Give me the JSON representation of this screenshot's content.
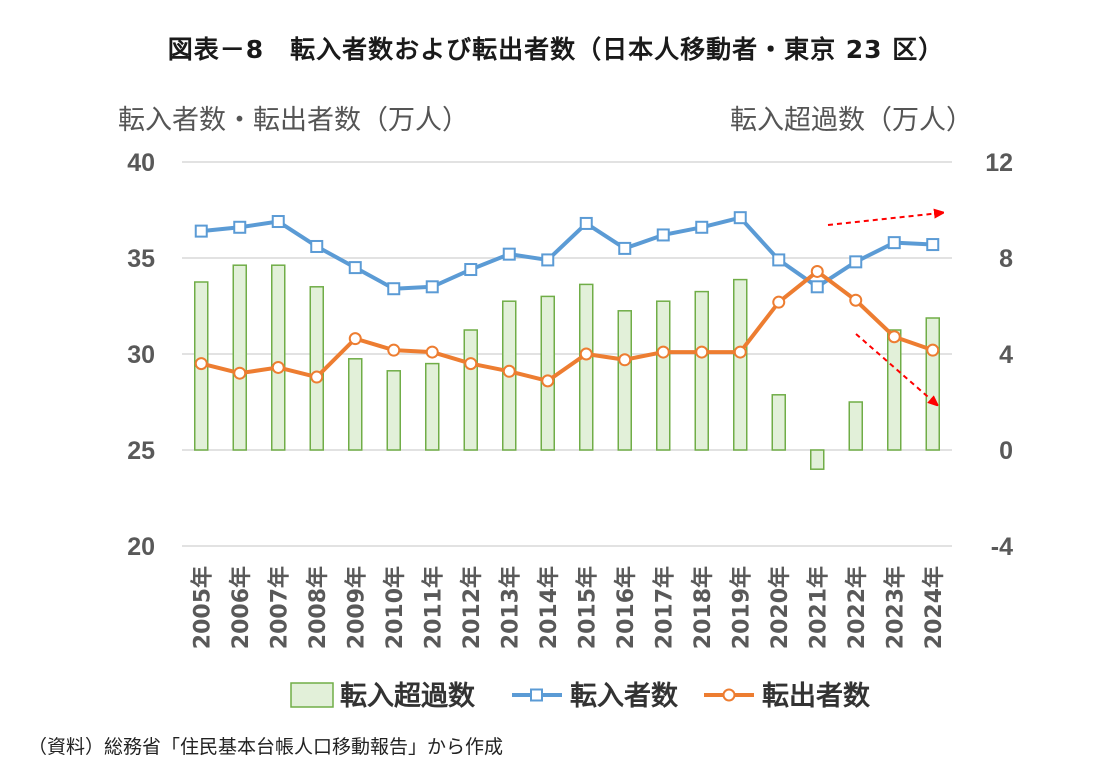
{
  "title": "図表－8　転入者数および転出者数（日本人移動者・東京 23 区）",
  "source": "（資料）総務省「住民基本台帳人口移動報告」から作成",
  "colors": {
    "bar_fill": "#e2f0d9",
    "bar_stroke": "#70ad47",
    "in_line": "#5b9bd5",
    "out_line": "#ed7d31",
    "grid": "#d9d9d9",
    "arrow": "#ff0000"
  },
  "chart_data": {
    "type": "bar+line",
    "title": "図表－8　転入者数および転出者数（日本人移動者・東京 23 区）",
    "ylabel_left": "転入者数・転出者数（万人）",
    "ylabel_right": "転入超過数（万人）",
    "ylim_left": [
      20,
      40
    ],
    "yticks_left": [
      "40",
      "35",
      "30",
      "25",
      "20"
    ],
    "ylim_right": [
      -4,
      12
    ],
    "yticks_right": [
      "12",
      "8",
      "4",
      "0",
      "-4"
    ],
    "grid": true,
    "legend_position": "bottom",
    "categories": [
      "2005年",
      "2006年",
      "2007年",
      "2008年",
      "2009年",
      "2010年",
      "2011年",
      "2012年",
      "2013年",
      "2014年",
      "2015年",
      "2016年",
      "2017年",
      "2018年",
      "2019年",
      "2020年",
      "2021年",
      "2022年",
      "2023年",
      "2024年"
    ],
    "series": [
      {
        "name": "転入超過数",
        "type": "bar",
        "axis": "right",
        "values": [
          7.0,
          7.7,
          7.7,
          6.8,
          3.8,
          3.3,
          3.6,
          5.0,
          6.2,
          6.4,
          6.9,
          5.8,
          6.2,
          6.6,
          7.1,
          2.3,
          -0.8,
          2.0,
          5.0,
          5.5
        ]
      },
      {
        "name": "転入者数",
        "type": "line",
        "axis": "left",
        "marker": "square",
        "values": [
          36.4,
          36.6,
          36.9,
          35.6,
          34.5,
          33.4,
          33.5,
          34.4,
          35.2,
          34.9,
          36.8,
          35.5,
          36.2,
          36.6,
          37.1,
          34.9,
          33.5,
          34.8,
          35.8,
          35.7
        ]
      },
      {
        "name": "転出者数",
        "type": "line",
        "axis": "left",
        "marker": "circle",
        "values": [
          29.5,
          29.0,
          29.3,
          28.8,
          30.8,
          30.2,
          30.1,
          29.5,
          29.1,
          28.6,
          30.0,
          29.7,
          30.1,
          30.1,
          30.1,
          32.7,
          34.3,
          32.8,
          30.9,
          30.2
        ]
      }
    ],
    "annotations": [
      "転入者数 trend arrow (upward, red dashed)",
      "転出者数 trend arrow (downward, red dashed)"
    ]
  }
}
